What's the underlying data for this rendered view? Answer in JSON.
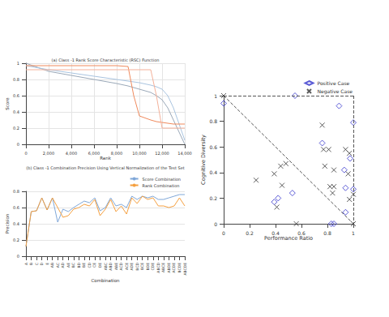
{
  "chart_data": [
    {
      "type": "line",
      "title": "(a) Class -1 Rank Score Characteristic (RSC) Function",
      "x_label": "Rank",
      "y_label": "Score",
      "x": [
        0,
        2000,
        4000,
        6000,
        8000,
        9000,
        9500,
        10000,
        11000,
        11500,
        12000,
        12500,
        13000,
        13500,
        14000
      ],
      "series": [
        {
          "color": "#9aa8b8",
          "values": [
            1.0,
            0.9,
            0.85,
            0.8,
            0.75,
            0.72,
            0.7,
            0.68,
            0.64,
            0.6,
            0.55,
            0.45,
            0.3,
            0.15,
            0.0
          ]
        },
        {
          "color": "#a9c4e0",
          "values": [
            0.97,
            0.92,
            0.88,
            0.84,
            0.8,
            0.78,
            0.77,
            0.76,
            0.73,
            0.71,
            0.68,
            0.6,
            0.45,
            0.25,
            0.05
          ]
        },
        {
          "color": "#f08a5d",
          "values": [
            0.97,
            0.97,
            0.97,
            0.97,
            0.97,
            0.96,
            0.6,
            0.35,
            0.3,
            0.28,
            0.27,
            0.26,
            0.25,
            0.25,
            0.25
          ]
        },
        {
          "color": "#f4b19a",
          "values": [
            0.92,
            0.92,
            0.92,
            0.92,
            0.92,
            0.92,
            0.92,
            0.92,
            0.92,
            0.6,
            0.2,
            0.2,
            0.2,
            0.2,
            0.2
          ]
        }
      ],
      "xlim": [
        0,
        14000
      ],
      "xticks": [
        0,
        2000,
        4000,
        6000,
        8000,
        10000,
        12000,
        14000
      ],
      "ylim": [
        0,
        1
      ],
      "yticks": [
        0,
        0.2,
        0.4,
        0.6,
        0.8,
        1
      ],
      "grid": true
    },
    {
      "type": "line",
      "title": "(b) Class -1 Combination Precision Using Vertical Normalization of the Test Set",
      "x_label": "Combination",
      "y_label": "Precision",
      "categories": [
        "A",
        "B",
        "C",
        "D",
        "E",
        "AB",
        "AC",
        "AD",
        "AE",
        "BC",
        "BD",
        "BE",
        "CD",
        "CE",
        "DE",
        "ABC",
        "ABD",
        "ABE",
        "ACD",
        "ACE",
        "ADE",
        "BCD",
        "BCE",
        "BDE",
        "CDE",
        "ABCD",
        "ABCE",
        "ABDE",
        "ACDE",
        "BCDE",
        "ABCDE"
      ],
      "series": [
        {
          "name": "Score Combination",
          "color": "#7fa7d8",
          "values": [
            0.12,
            0.55,
            0.56,
            0.72,
            0.57,
            0.72,
            0.42,
            0.58,
            0.55,
            0.6,
            0.64,
            0.68,
            0.66,
            0.72,
            0.56,
            0.6,
            0.72,
            0.62,
            0.64,
            0.6,
            0.74,
            0.7,
            0.74,
            0.72,
            0.74,
            0.7,
            0.7,
            0.72,
            0.74,
            0.76,
            0.76
          ]
        },
        {
          "name": "Rank Combination",
          "color": "#f5a040",
          "values": [
            0.12,
            0.55,
            0.56,
            0.72,
            0.57,
            0.72,
            0.6,
            0.48,
            0.5,
            0.58,
            0.6,
            0.64,
            0.62,
            0.7,
            0.5,
            0.58,
            0.7,
            0.55,
            0.62,
            0.52,
            0.72,
            0.65,
            0.74,
            0.7,
            0.72,
            0.62,
            0.62,
            0.6,
            0.62,
            0.72,
            0.62
          ]
        }
      ],
      "ylim": [
        0,
        0.8
      ],
      "yticks": [
        0,
        0.2,
        0.4,
        0.6,
        0.8
      ],
      "grid": true,
      "legend": "upper right"
    },
    {
      "type": "scatter",
      "x_label": "Performance Ratio",
      "y_label": "Cognitive Diversity",
      "series": [
        {
          "name": "Positive Case",
          "color": "#3333cc",
          "marker": "diamond",
          "x": [
            0,
            0.55,
            0.89,
            0.76,
            1,
            0.975,
            0.93,
            0.94,
            1,
            0.94,
            0.83,
            0.85,
            0.39,
            0.42,
            0.53
          ],
          "values": [
            0.94,
            1.0,
            0.92,
            0.63,
            0.79,
            0.51,
            0.42,
            0.28,
            0.27,
            0.09,
            0,
            0,
            0.17,
            0.2,
            0.24
          ]
        },
        {
          "name": "Negative Case",
          "color": "#333333",
          "marker": "x",
          "x": [
            0,
            0.76,
            0.77,
            0.81,
            0.25,
            0.39,
            0.44,
            0.48,
            0.45,
            0.41,
            0.78,
            0.82,
            0.85,
            0.84,
            0.85,
            0.94,
            0.97,
            0.96,
            0.97,
            1,
            0.56,
            1
          ],
          "values": [
            1,
            0.77,
            0.58,
            0.58,
            0.34,
            0.39,
            0.45,
            0.47,
            0.3,
            0.13,
            0.45,
            0.29,
            0.42,
            0.24,
            0.29,
            0.58,
            0.55,
            0.39,
            0.19,
            0.23,
            0,
            0
          ]
        }
      ],
      "xlim": [
        0,
        1
      ],
      "xticks": [
        0,
        0.2,
        0.4,
        0.6,
        0.8,
        1
      ],
      "ylim": [
        0,
        1
      ],
      "yticks": [
        0,
        0.2,
        0.4,
        0.6,
        0.8,
        1
      ],
      "grid": false,
      "legend": "upper right"
    }
  ]
}
